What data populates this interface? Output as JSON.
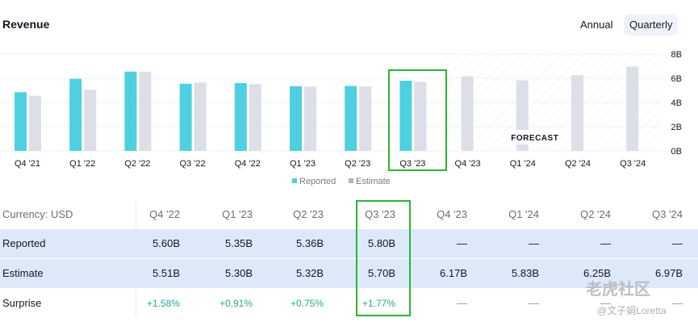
{
  "header": {
    "title": "Revenue",
    "toggle_annual": "Annual",
    "toggle_quarterly": "Quarterly"
  },
  "colors": {
    "reported": "#4fd0e0",
    "estimate": "#dcdfe7",
    "positive": "#22ab94",
    "highlight": "#2db336"
  },
  "chart_data": {
    "type": "bar",
    "categories": [
      "Q4 '21",
      "Q1 '22",
      "Q2 '22",
      "Q3 '22",
      "Q4 '22",
      "Q1 '23",
      "Q2 '23",
      "Q3 '23",
      "Q4 '23",
      "Q1 '24",
      "Q2 '24",
      "Q3 '24"
    ],
    "series": [
      {
        "name": "Reported",
        "values": [
          4.85,
          5.95,
          6.55,
          5.55,
          5.6,
          5.35,
          5.36,
          5.8,
          null,
          null,
          null,
          null
        ]
      },
      {
        "name": "Estimate",
        "values": [
          4.55,
          5.05,
          6.55,
          5.65,
          5.51,
          5.3,
          5.32,
          5.7,
          6.17,
          5.83,
          6.25,
          6.97
        ]
      }
    ],
    "y_ticks": [
      "0B",
      "2B",
      "4B",
      "6B",
      "8B"
    ],
    "ylim": [
      0,
      8
    ],
    "forecast_label": "FORECAST",
    "forecast_from_index": 8,
    "highlight_index": 7,
    "grid": true,
    "legend": [
      "Reported",
      "Estimate"
    ],
    "legend_position": "bottom-center"
  },
  "table": {
    "currency_label": "Currency: USD",
    "columns": [
      "Q4 '22",
      "Q1 '23",
      "Q2 '23",
      "Q3 '23",
      "Q4 '23",
      "Q1 '24",
      "Q2 '24",
      "Q3 '24"
    ],
    "rows": [
      {
        "label": "Reported",
        "values": [
          "5.60B",
          "5.35B",
          "5.36B",
          "5.80B",
          "—",
          "—",
          "—",
          "—"
        ]
      },
      {
        "label": "Estimate",
        "values": [
          "5.51B",
          "5.30B",
          "5.32B",
          "5.70B",
          "6.17B",
          "5.83B",
          "6.25B",
          "6.97B"
        ]
      },
      {
        "label": "Surprise",
        "values": [
          "+1.58%",
          "+0.91%",
          "+0.75%",
          "+1.77%",
          "—",
          "—",
          "—",
          "—"
        ]
      }
    ]
  },
  "watermark": {
    "logo": "老虎社区",
    "user": "@文子娟Loretta"
  }
}
